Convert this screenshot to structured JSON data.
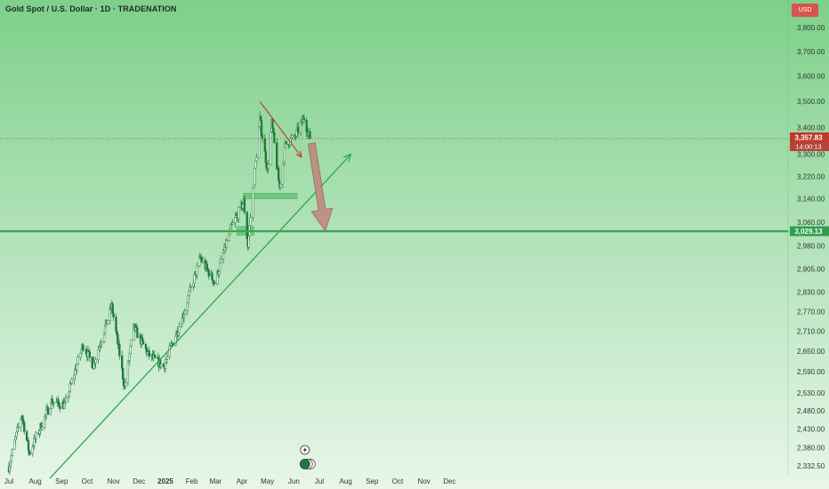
{
  "header": {
    "title": "Gold Spot / U.S. Dollar · 1D · TRADENATION",
    "currency_button": "USD"
  },
  "colors": {
    "background_top": "#7ed08a",
    "background_bottom": "#e8f6ea",
    "bull_candle": "#1e7a3a",
    "bear_candle": "#1e7a3a",
    "support_line": "#3aa655",
    "trendline": "#2fa64d",
    "wedge_line": "#c0392b",
    "projection_arrow": "#c0857f",
    "price_label_bg": "#c0392b",
    "support_label_bg": "#2f9e4f",
    "zone_fill": "#5fc06f"
  },
  "chart_data": {
    "type": "candlestick",
    "title": "Gold Spot / U.S. Dollar · 1D · TRADENATION",
    "x_tick_labels": [
      "Jul",
      "Aug",
      "Sep",
      "Oct",
      "Nov",
      "Dec",
      "2025",
      "Feb",
      "Mar",
      "Apr",
      "May",
      "Jun",
      "Jul",
      "Aug",
      "Sep",
      "Oct",
      "Nov",
      "Dec"
    ],
    "x_range": [
      "2024-07-01",
      "2025-12-31"
    ],
    "y_tick_labels": [
      "3,800.00",
      "3,700.00",
      "3,600.00",
      "3,500.00",
      "3,400.00",
      "3,300.00",
      "3,220.00",
      "3,140.00",
      "3,060.00",
      "2,980.00",
      "2,905.00",
      "2,830.00",
      "2,770.00",
      "2,710.00",
      "2,650.00",
      "2,590.00",
      "2,530.00",
      "2,480.00",
      "2,430.00",
      "2,380.00",
      "2,332.50"
    ],
    "y_scale": "log",
    "ylim": [
      2310,
      3900
    ],
    "grid": false,
    "price_anchors": [
      {
        "date": "2024-07-01",
        "close": 2330
      },
      {
        "date": "2024-07-16",
        "close": 2470
      },
      {
        "date": "2024-07-25",
        "close": 2365
      },
      {
        "date": "2024-08-20",
        "close": 2505
      },
      {
        "date": "2024-09-05",
        "close": 2495
      },
      {
        "date": "2024-09-26",
        "close": 2670
      },
      {
        "date": "2024-10-08",
        "close": 2610
      },
      {
        "date": "2024-10-30",
        "close": 2785
      },
      {
        "date": "2024-11-14",
        "close": 2545
      },
      {
        "date": "2024-11-25",
        "close": 2720
      },
      {
        "date": "2024-12-12",
        "close": 2640
      },
      {
        "date": "2024-12-30",
        "close": 2605
      },
      {
        "date": "2025-01-22",
        "close": 2760
      },
      {
        "date": "2025-02-11",
        "close": 2940
      },
      {
        "date": "2025-02-28",
        "close": 2860
      },
      {
        "date": "2025-03-20",
        "close": 3045
      },
      {
        "date": "2025-04-03",
        "close": 3130
      },
      {
        "date": "2025-04-08",
        "close": 2980
      },
      {
        "date": "2025-04-22",
        "close": 3430
      },
      {
        "date": "2025-05-01",
        "close": 3240
      },
      {
        "date": "2025-05-06",
        "close": 3415
      },
      {
        "date": "2025-05-15",
        "close": 3180
      },
      {
        "date": "2025-05-22",
        "close": 3335
      },
      {
        "date": "2025-06-02",
        "close": 3365
      },
      {
        "date": "2025-06-13",
        "close": 3435
      },
      {
        "date": "2025-06-20",
        "close": 3357.83
      }
    ],
    "annotations": {
      "current_price_label": "3,357.83",
      "countdown_label": "14:00:13",
      "support_label": "3,029.13",
      "support_level": 3029.13,
      "current_price": 3357.83,
      "demand_zones": [
        {
          "start": "2025-04-03",
          "end": "2025-06-05",
          "low": 3140,
          "high": 3160
        },
        {
          "start": "2025-03-26",
          "end": "2025-04-15",
          "low": 3015,
          "high": 3045
        }
      ],
      "rising_trendline": {
        "start": {
          "date": "2024-08-18",
          "price": 2300
        },
        "end": {
          "date": "2025-08-07",
          "price": 3300
        }
      },
      "falling_wedge_line": {
        "start": {
          "date": "2025-04-22",
          "price": 3500
        },
        "end": {
          "date": "2025-06-10",
          "price": 3290
        }
      },
      "projection_arrow": {
        "start": {
          "date": "2025-06-22",
          "price": 3340
        },
        "end": {
          "date": "2025-07-08",
          "price": 3030
        }
      }
    }
  }
}
